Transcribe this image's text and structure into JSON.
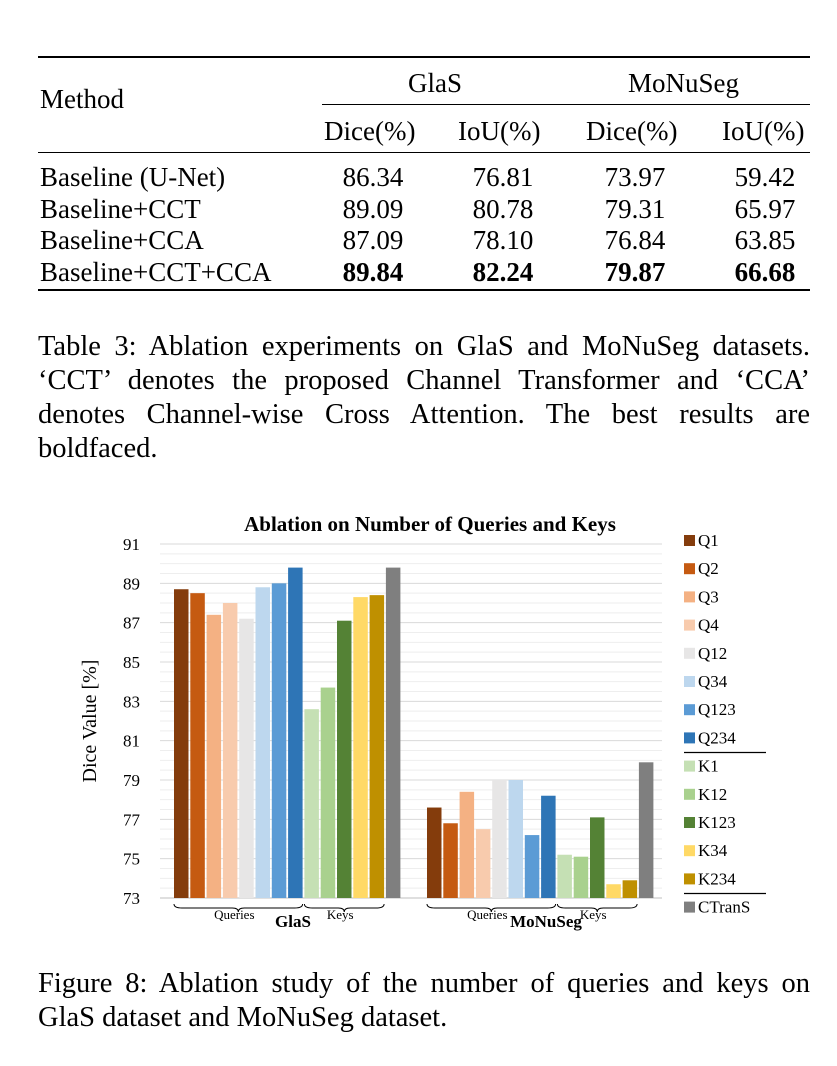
{
  "table": {
    "method_header": "Method",
    "group_headers": [
      "GlaS",
      "MoNuSeg"
    ],
    "sub_headers": [
      "Dice(%)",
      "IoU(%)",
      "Dice(%)",
      "IoU(%)"
    ],
    "rows": [
      {
        "method": "Baseline (U-Net)",
        "values": [
          "86.34",
          "76.81",
          "73.97",
          "59.42"
        ],
        "bold": false
      },
      {
        "method": "Baseline+CCT",
        "values": [
          "89.09",
          "80.78",
          "79.31",
          "65.97"
        ],
        "bold": false
      },
      {
        "method": "Baseline+CCA",
        "values": [
          "87.09",
          "78.10",
          "76.84",
          "63.85"
        ],
        "bold": false
      },
      {
        "method": "Baseline+CCT+CCA",
        "values": [
          "89.84",
          "82.24",
          "79.87",
          "66.68"
        ],
        "bold": true
      }
    ]
  },
  "table_caption": "Table 3: Ablation experiments on GlaS and MoNuSeg datasets. ‘CCT’ denotes the proposed Channel Transformer and ‘CCA’ denotes Channel-wise Cross Attention. The best results are boldfaced.",
  "figure_caption": "Figure 8: Ablation study of the number of queries and keys on GlaS dataset and MoNuSeg dataset.",
  "chart_data": {
    "type": "bar",
    "title": "Ablation on Number of Queries and Keys",
    "ylabel": "Dice Value [%]",
    "ylim": [
      73,
      91
    ],
    "yticks": [
      73,
      75,
      77,
      79,
      81,
      83,
      85,
      87,
      89,
      91
    ],
    "grid": true,
    "legend_position": "right",
    "categories": [
      "GlaS",
      "MoNuSeg"
    ],
    "group_labels": {
      "queries": "Queries",
      "keys": "Keys"
    },
    "series": [
      {
        "name": "Q1",
        "color": "#843c0c",
        "values": [
          88.7,
          77.6
        ]
      },
      {
        "name": "Q2",
        "color": "#c55a11",
        "values": [
          88.5,
          76.8
        ]
      },
      {
        "name": "Q3",
        "color": "#f4b183",
        "values": [
          87.4,
          78.4
        ]
      },
      {
        "name": "Q4",
        "color": "#f8cbad",
        "values": [
          88.0,
          76.5
        ]
      },
      {
        "name": "Q12",
        "color": "#e7e6e6",
        "values": [
          87.2,
          79.0
        ]
      },
      {
        "name": "Q34",
        "color": "#bdd7ee",
        "values": [
          88.8,
          79.0
        ]
      },
      {
        "name": "Q123",
        "color": "#5b9bd5",
        "values": [
          89.0,
          76.2
        ]
      },
      {
        "name": "Q234",
        "color": "#2e75b6",
        "values": [
          89.8,
          78.2
        ]
      },
      {
        "name": "K1",
        "color": "#c5e0b4",
        "values": [
          82.6,
          75.2
        ]
      },
      {
        "name": "K12",
        "color": "#a9d18e",
        "values": [
          83.7,
          75.1
        ]
      },
      {
        "name": "K123",
        "color": "#548235",
        "values": [
          87.1,
          77.1
        ]
      },
      {
        "name": "K34",
        "color": "#ffd966",
        "values": [
          88.3,
          73.7
        ]
      },
      {
        "name": "K234",
        "color": "#bf9000",
        "values": [
          88.4,
          73.9
        ]
      },
      {
        "name": "CTranS",
        "color": "#7f7f7f",
        "values": [
          89.8,
          79.9
        ]
      }
    ]
  }
}
